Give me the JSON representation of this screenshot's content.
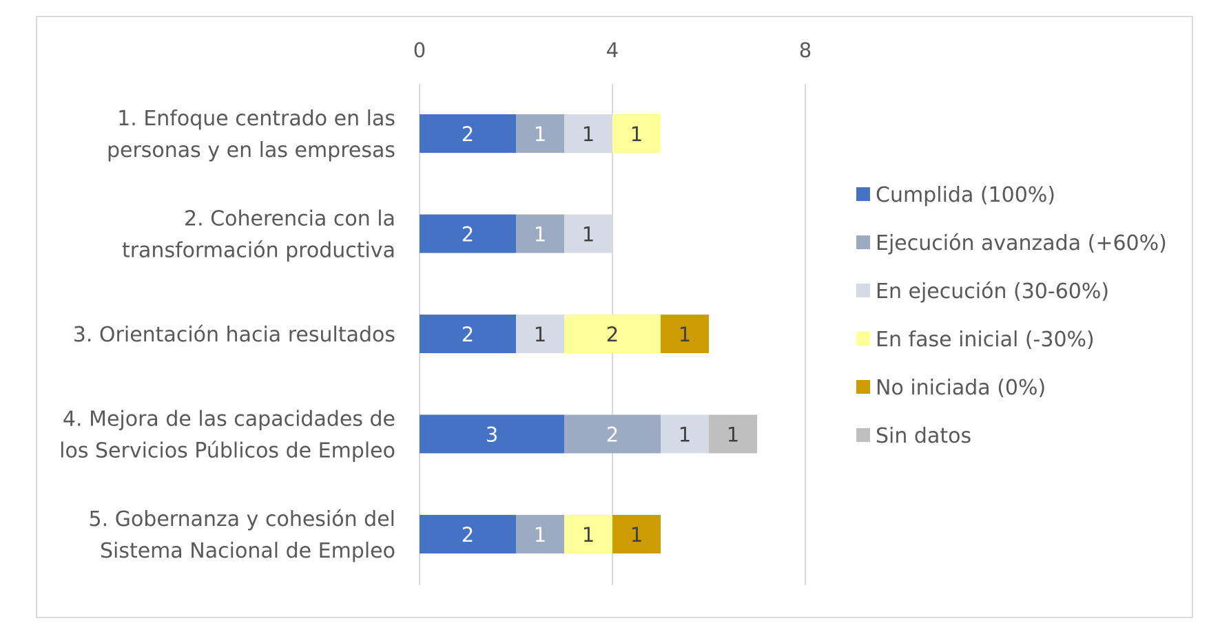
{
  "chart_data": {
    "type": "bar",
    "orientation": "horizontal",
    "stacked": true,
    "xlim": [
      0,
      8
    ],
    "ticks": [
      "0",
      "4",
      "8"
    ],
    "tick_values": [
      0,
      4,
      8
    ],
    "grid": true,
    "legend_position": "right",
    "categories": [
      [
        "1. Enfoque centrado en las",
        "personas y en las empresas"
      ],
      [
        "2. Coherencia con la",
        "transformación productiva"
      ],
      [
        "3. Orientación hacia resultados"
      ],
      [
        "4. Mejora de las capacidades de",
        "los Servicios Públicos de Empleo"
      ],
      [
        "5. Gobernanza y cohesión del",
        "Sistema Nacional de Empleo"
      ]
    ],
    "series": [
      {
        "name": "Cumplida (100%)",
        "color": "#4472c4",
        "label_color": "#ffffff",
        "values": [
          2,
          2,
          2,
          3,
          2
        ]
      },
      {
        "name": "Ejecución avanzada (+60%)",
        "color": "#9dabc2",
        "label_color": "#ffffff",
        "values": [
          1,
          1,
          0,
          2,
          1
        ]
      },
      {
        "name": "En ejecución (30-60%)",
        "color": "#d4dbe6",
        "label_color": "#404040",
        "values": [
          1,
          1,
          1,
          1,
          0
        ]
      },
      {
        "name": "En fase inicial (-30%)",
        "color": "#ffff99",
        "label_color": "#404040",
        "values": [
          1,
          0,
          2,
          0,
          1
        ]
      },
      {
        "name": "No iniciada (0%)",
        "color": "#cc9c00",
        "label_color": "#404040",
        "values": [
          0,
          0,
          1,
          0,
          1
        ]
      },
      {
        "name": "Sin datos",
        "color": "#bfbfbf",
        "label_color": "#404040",
        "values": [
          0,
          0,
          0,
          1,
          0
        ]
      }
    ]
  }
}
